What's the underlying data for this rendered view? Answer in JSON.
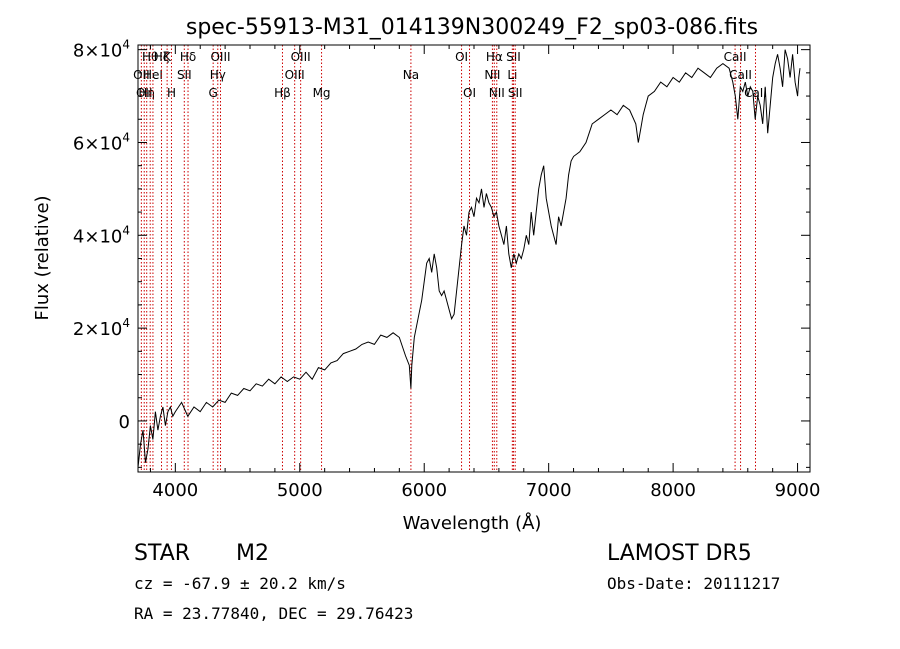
{
  "chart_data": {
    "type": "line",
    "title": "spec-55913-M31_014139N300249_F2_sp03-086.fits",
    "xlabel": "Wavelength (Å)",
    "ylabel": "Flux (relative)",
    "xlim": [
      3700,
      9100
    ],
    "ylim": [
      -11000,
      81000
    ],
    "xticks": [
      4000,
      5000,
      6000,
      7000,
      8000,
      9000
    ],
    "yticks": [
      {
        "value": 0,
        "label": "0",
        "exp": ""
      },
      {
        "value": 20000,
        "label": "2×10",
        "exp": "4"
      },
      {
        "value": 40000,
        "label": "4×10",
        "exp": "4"
      },
      {
        "value": 60000,
        "label": "6×10",
        "exp": "4"
      },
      {
        "value": 80000,
        "label": "8×10",
        "exp": "4"
      }
    ],
    "grid": false,
    "line_color": "#000000",
    "marker_color": "#cc0000",
    "series": [
      {
        "x": [
          3700,
          3720,
          3740,
          3760,
          3780,
          3800,
          3820,
          3840,
          3860,
          3880,
          3900,
          3920,
          3940,
          3960,
          3980,
          4000,
          4050,
          4100,
          4150,
          4200,
          4250,
          4300,
          4350,
          4400,
          4450,
          4500,
          4550,
          4600,
          4650,
          4700,
          4750,
          4800,
          4850,
          4900,
          4950,
          5000,
          5050,
          5100,
          5150,
          5200,
          5250,
          5300,
          5350,
          5400,
          5450,
          5500,
          5550,
          5600,
          5650,
          5700,
          5750,
          5800,
          5850,
          5880,
          5893,
          5900,
          5920,
          5950,
          5980,
          6000,
          6020,
          6040,
          6060,
          6080,
          6100,
          6120,
          6140,
          6160,
          6180,
          6200,
          6220,
          6240,
          6260,
          6280,
          6300,
          6320,
          6340,
          6360,
          6380,
          6400,
          6420,
          6440,
          6460,
          6480,
          6500,
          6520,
          6540,
          6560,
          6580,
          6600,
          6620,
          6640,
          6660,
          6680,
          6700,
          6720,
          6740,
          6760,
          6780,
          6800,
          6820,
          6840,
          6860,
          6880,
          6900,
          6920,
          6940,
          6960,
          6980,
          7000,
          7020,
          7040,
          7060,
          7080,
          7100,
          7120,
          7140,
          7160,
          7180,
          7200,
          7250,
          7300,
          7350,
          7400,
          7450,
          7500,
          7550,
          7600,
          7650,
          7700,
          7720,
          7740,
          7760,
          7780,
          7800,
          7850,
          7900,
          7950,
          8000,
          8050,
          8100,
          8150,
          8200,
          8250,
          8300,
          8350,
          8400,
          8450,
          8480,
          8500,
          8520,
          8540,
          8560,
          8580,
          8600,
          8620,
          8640,
          8660,
          8680,
          8700,
          8720,
          8740,
          8760,
          8780,
          8800,
          8820,
          8840,
          8860,
          8880,
          8900,
          8920,
          8940,
          8960,
          8980,
          9000,
          9010,
          9020
        ],
        "y": [
          -10000,
          -5000,
          -2000,
          -9000,
          -6000,
          -1000,
          -4000,
          2000,
          -2000,
          1000,
          3000,
          -1000,
          2000,
          3000,
          1000,
          2000,
          4000,
          1000,
          3000,
          2000,
          4000,
          3000,
          4500,
          4000,
          6000,
          5500,
          7000,
          6500,
          8000,
          7500,
          9000,
          8000,
          9500,
          8500,
          9500,
          9000,
          10500,
          9000,
          11500,
          11000,
          12500,
          13000,
          14500,
          15000,
          15500,
          16500,
          17000,
          16500,
          18500,
          18000,
          19000,
          18000,
          14000,
          12000,
          7000,
          12000,
          18000,
          22000,
          26000,
          30000,
          34000,
          35000,
          32000,
          36000,
          33000,
          28000,
          27000,
          28000,
          26000,
          24000,
          22000,
          23000,
          28000,
          33000,
          38000,
          42000,
          40000,
          45000,
          46000,
          44000,
          48000,
          47000,
          50000,
          46000,
          49000,
          47000,
          46000,
          44000,
          45000,
          42000,
          40000,
          38000,
          42000,
          36000,
          33000,
          36000,
          34000,
          36000,
          35000,
          37000,
          40000,
          38000,
          45000,
          40000,
          45000,
          50000,
          53000,
          55000,
          48000,
          45000,
          42000,
          40000,
          38000,
          44000,
          42000,
          45000,
          48000,
          53000,
          56000,
          57000,
          58000,
          60000,
          64000,
          65000,
          66000,
          67000,
          66000,
          68000,
          67000,
          64000,
          60000,
          63000,
          66000,
          68000,
          70000,
          71000,
          73000,
          72000,
          74000,
          73000,
          75000,
          74000,
          76000,
          75000,
          74000,
          76000,
          77000,
          76000,
          73000,
          70000,
          65000,
          72000,
          71000,
          73000,
          70000,
          72000,
          71000,
          65000,
          70000,
          68000,
          64000,
          72000,
          62000,
          68000,
          74000,
          77000,
          79000,
          76000,
          72000,
          80000,
          78000,
          74000,
          79000,
          73000,
          70000,
          74000,
          76000
        ]
      }
    ],
    "lines": [
      {
        "lambda": 3727,
        "label": "OII",
        "row": 1
      },
      {
        "lambda": 3750,
        "label": "OII",
        "row": 2
      },
      {
        "lambda": 3770,
        "label": "Hη",
        "row": 2
      },
      {
        "lambda": 3798,
        "label": "Hθ",
        "row": 0
      },
      {
        "lambda": 3820,
        "label": "HeI",
        "row": 1
      },
      {
        "lambda": 3889,
        "label": "Hζ",
        "row": 0
      },
      {
        "lambda": 3934,
        "label": "K",
        "row": 0
      },
      {
        "lambda": 3969,
        "label": "H",
        "row": 2
      },
      {
        "lambda": 4072,
        "label": "SII",
        "row": 1
      },
      {
        "lambda": 4102,
        "label": "Hδ",
        "row": 0
      },
      {
        "lambda": 4304,
        "label": "G",
        "row": 2
      },
      {
        "lambda": 4341,
        "label": "Hγ",
        "row": 1
      },
      {
        "lambda": 4363,
        "label": "OIII",
        "row": 0
      },
      {
        "lambda": 4861,
        "label": "Hβ",
        "row": 2
      },
      {
        "lambda": 4959,
        "label": "OIII",
        "row": 1
      },
      {
        "lambda": 5007,
        "label": "OIII",
        "row": 0
      },
      {
        "lambda": 5175,
        "label": "Mg",
        "row": 2
      },
      {
        "lambda": 5893,
        "label": "Na",
        "row": 1
      },
      {
        "lambda": 6300,
        "label": "OI",
        "row": 0
      },
      {
        "lambda": 6364,
        "label": "OI",
        "row": 2
      },
      {
        "lambda": 6548,
        "label": "NII",
        "row": 1
      },
      {
        "lambda": 6563,
        "label": "Hα",
        "row": 0
      },
      {
        "lambda": 6583,
        "label": "NII",
        "row": 2
      },
      {
        "lambda": 6708,
        "label": "Li",
        "row": 1
      },
      {
        "lambda": 6717,
        "label": "SII",
        "row": 0
      },
      {
        "lambda": 6731,
        "label": "SII",
        "row": 2
      },
      {
        "lambda": 8498,
        "label": "CaII",
        "row": 0
      },
      {
        "lambda": 8542,
        "label": "CaII",
        "row": 1
      },
      {
        "lambda": 8662,
        "label": "CaII",
        "row": 2
      }
    ]
  },
  "info": {
    "class_label": "STAR",
    "subclass_label": "M2",
    "cz_text": "cz = -67.9 ± 20.2 km/s",
    "coords_text": "RA =  23.77840, DEC =  29.76423",
    "survey_label": "LAMOST DR5",
    "obs_date_text": "Obs-Date: 20111217"
  }
}
